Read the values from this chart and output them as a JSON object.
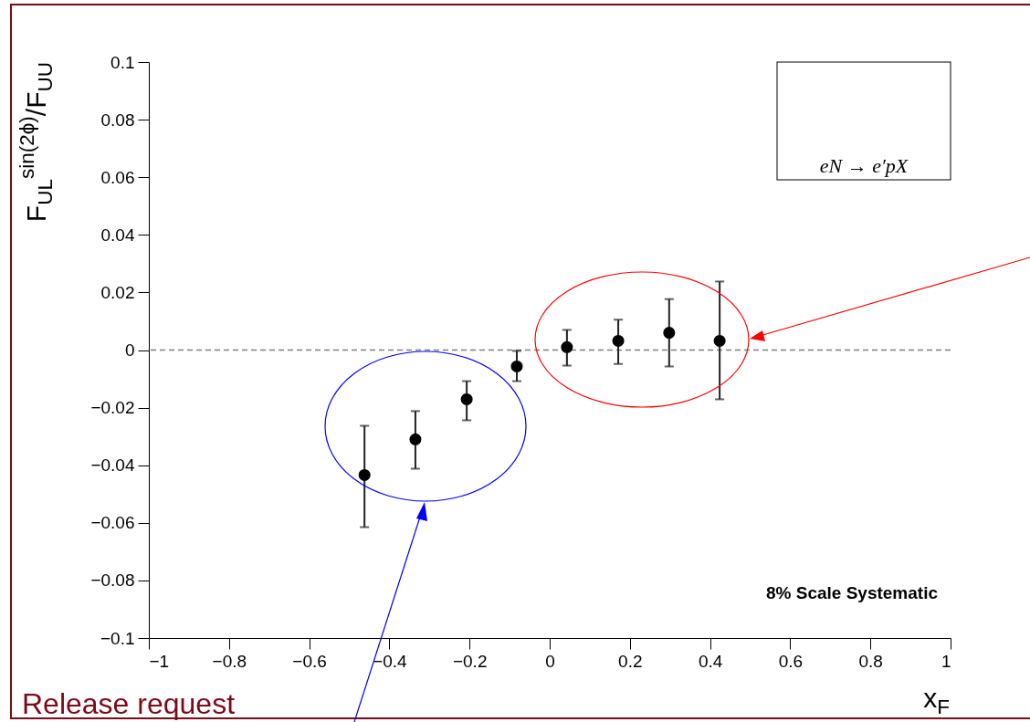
{
  "chart_data": {
    "type": "scatter",
    "xlabel": "x$_{F}$",
    "ylabel": "F$_{UL}$$^{sin(2ϕ)}$/F$_{UU}$",
    "x": [
      -0.462,
      -0.335,
      -0.207,
      -0.082,
      0.043,
      0.171,
      0.298,
      0.424
    ],
    "series": [
      {
        "color": "#000000",
        "values": [
          -0.0434,
          -0.031,
          -0.0171,
          -0.0057,
          0.001,
          0.0032,
          0.006,
          0.0032
        ],
        "errors": [
          [
            -0.0615,
            -0.0263
          ],
          [
            -0.0412,
            -0.0212
          ],
          [
            -0.0244,
            -0.0108
          ],
          [
            -0.0108,
            -0.0003
          ],
          [
            -0.0054,
            0.007
          ],
          [
            -0.0048,
            0.0105
          ],
          [
            -0.0057,
            0.0177
          ],
          [
            -0.0171,
            0.0238
          ]
        ]
      }
    ],
    "marker": "circle",
    "grid": false,
    "xlim": [
      -1,
      1
    ],
    "xticks": [
      {
        "value": -1,
        "label": "−1"
      },
      {
        "value": -0.8,
        "label": "−0.8"
      },
      {
        "value": -0.6,
        "label": "−0.6"
      },
      {
        "value": -0.4,
        "label": "−0.4"
      },
      {
        "value": -0.2,
        "label": "−0.2"
      },
      0,
      0.2,
      0.4,
      0.6,
      0.8,
      1
    ],
    "ylim": [
      -0.1,
      0.1
    ],
    "yticks": [
      {
        "value": -0.1,
        "label": "−0.1"
      },
      {
        "value": -0.08,
        "label": "−0.08"
      },
      {
        "value": -0.06,
        "label": "−0.06"
      },
      {
        "value": -0.04,
        "label": "−0.04"
      },
      {
        "value": -0.02,
        "label": "−0.02"
      },
      0,
      0.02,
      0.04,
      0.06,
      0.08,
      0.1
    ],
    "ref_lines": [
      {
        "axis": "y",
        "value": 0,
        "color": "#808080",
        "line_style": "dashed"
      }
    ],
    "annotations": [
      "eN → e′pX",
      "8% Scale Systematic",
      "Release request"
    ]
  }
}
